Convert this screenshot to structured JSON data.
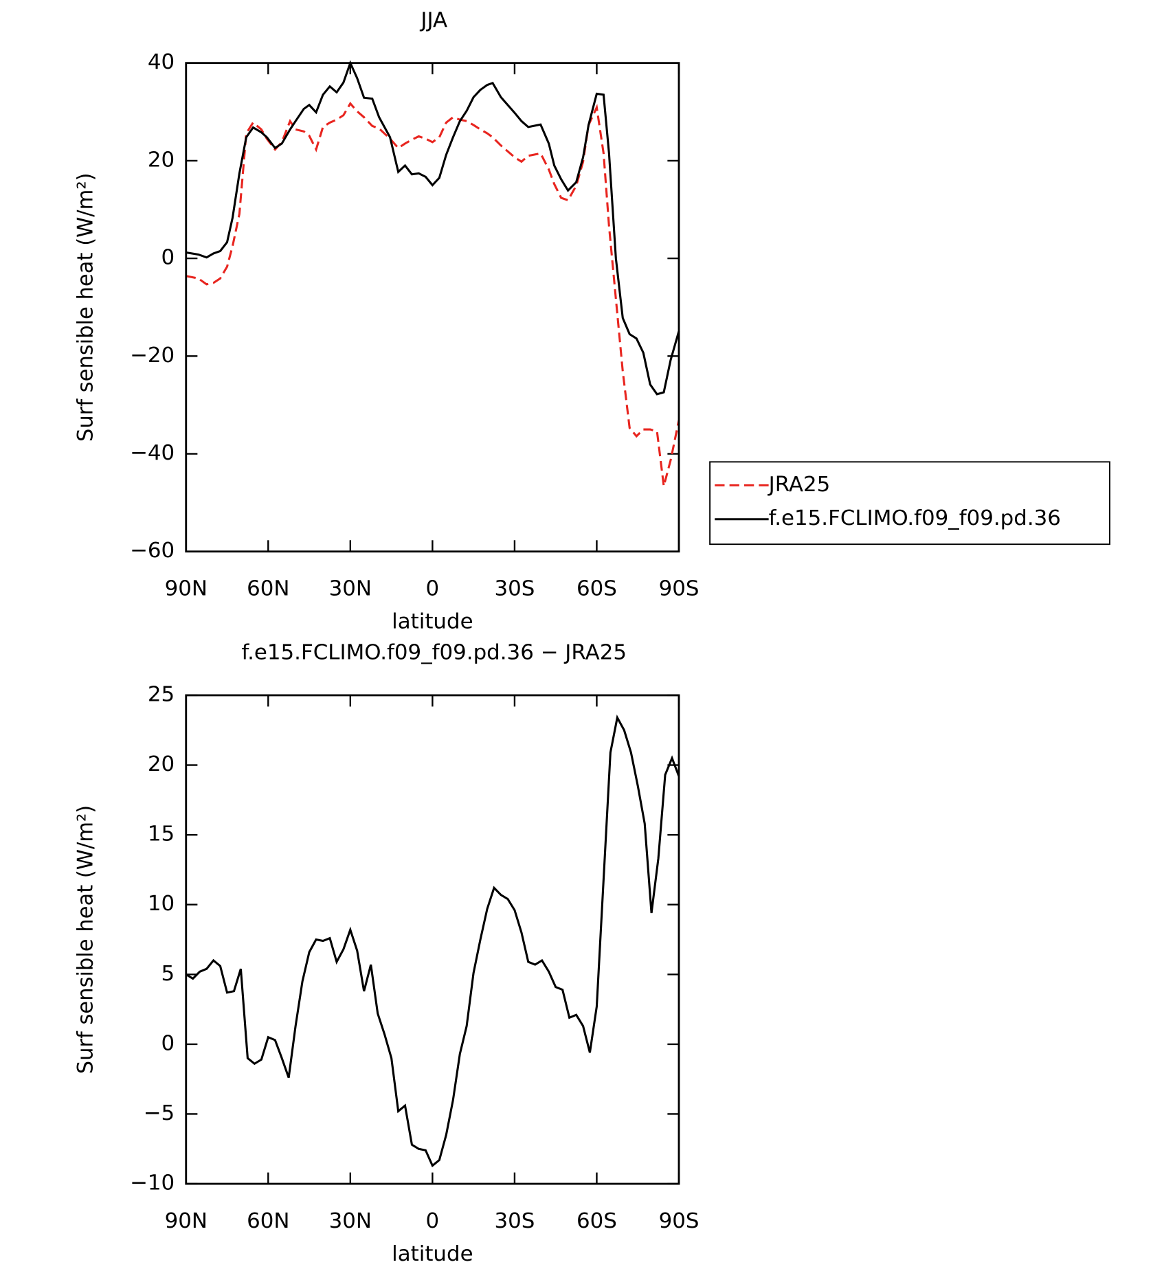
{
  "chart_data": [
    {
      "type": "line",
      "title": "JJA",
      "xlabel": "latitude",
      "ylabel": "Surf sensible heat (W/m²)",
      "x": [
        90,
        85.5,
        82.5,
        80,
        77.5,
        75,
        73,
        70.5,
        68,
        65.5,
        62.5,
        60.5,
        57.5,
        55,
        52,
        50,
        47,
        45,
        42.5,
        40,
        37.5,
        35,
        32.5,
        30,
        27.5,
        25,
        22,
        19.5,
        15.5,
        12.5,
        10,
        7.5,
        5,
        2.5,
        0,
        -2.5,
        -5,
        -7.5,
        -10,
        -12.5,
        -15,
        -17.5,
        -20,
        -22,
        -25,
        -30,
        -32.5,
        -35,
        -39.5,
        -42.5,
        -44.5,
        -47,
        -49.5,
        -52.5,
        -55,
        -57,
        -60,
        -62.5,
        -64.5,
        -67,
        -69.5,
        -72,
        -74.5,
        -77,
        -79.5,
        -82,
        -84.5,
        -87,
        -90
      ],
      "series": [
        {
          "name": "JRA25",
          "color": "#e8251f",
          "linestyle": "dashed",
          "values": [
            -3.6,
            -4.1,
            -5.3,
            -5,
            -4.1,
            -1.7,
            2.5,
            9.1,
            25.6,
            27.8,
            26.4,
            24.5,
            22.3,
            23.8,
            28.1,
            26.4,
            26,
            25.1,
            22.3,
            26.9,
            27.8,
            28.4,
            29.3,
            31.7,
            30.1,
            28.9,
            27.1,
            26.6,
            24.5,
            22.6,
            23.5,
            24.3,
            25,
            24.5,
            23.8,
            24.8,
            27.8,
            28.9,
            28.4,
            28.1,
            27.3,
            26.4,
            25.6,
            24.8,
            23.1,
            20.7,
            19.8,
            21,
            21.5,
            18.2,
            15.2,
            12.4,
            11.9,
            14.9,
            19.8,
            27.3,
            30.9,
            21.5,
            6.6,
            -8.3,
            -23.1,
            -34.7,
            -36.4,
            -35,
            -35,
            -35.4,
            -46.6,
            -41.3,
            -33.1
          ]
        },
        {
          "name": "f.e15.FCLIMO.f09_f09.pd.36",
          "color": "#000000",
          "linestyle": "solid",
          "values": [
            1.2,
            0.8,
            0.2,
            1,
            1.5,
            3.3,
            8.3,
            17.4,
            24.8,
            26.8,
            25.8,
            24.8,
            22.6,
            23.5,
            26.4,
            28.1,
            30.6,
            31.4,
            29.9,
            33.5,
            35.2,
            34,
            36,
            40,
            36.9,
            32.9,
            32.7,
            28.9,
            24.8,
            17.7,
            19,
            17.2,
            17.4,
            16.7,
            15,
            16.5,
            21.2,
            24.8,
            28.1,
            30.2,
            33,
            34.5,
            35.5,
            35.9,
            33,
            29.8,
            28.1,
            26.9,
            27.4,
            23.5,
            19,
            16.2,
            13.9,
            15.6,
            20.7,
            27.3,
            33.7,
            33.5,
            21.5,
            0,
            -12.2,
            -15.5,
            -16.4,
            -19.3,
            -25.8,
            -27.8,
            -27.4,
            -20.8,
            -14.9
          ]
        }
      ],
      "xlim": [
        90,
        -90
      ],
      "xticks": [
        {
          "value": 90,
          "label": "90N"
        },
        {
          "value": 60,
          "label": "60N"
        },
        {
          "value": 30,
          "label": "30N"
        },
        0,
        {
          "value": -30,
          "label": "30S"
        },
        {
          "value": -60,
          "label": "60S"
        },
        {
          "value": -90,
          "label": "90S"
        }
      ],
      "ylim": [
        -60,
        40
      ],
      "yticks": [
        {
          "value": -60,
          "label": "−60"
        },
        {
          "value": -40,
          "label": "−40"
        },
        {
          "value": -20,
          "label": "−20"
        },
        0,
        20,
        40
      ],
      "legend": "right"
    },
    {
      "type": "line",
      "title": "f.e15.FCLIMO.f09_f09.pd.36 − JRA25",
      "xlabel": "latitude",
      "ylabel": "Surf sensible heat (W/m²)",
      "x": [
        90,
        87.5,
        85,
        82.5,
        80,
        77.5,
        75,
        72.5,
        70,
        67.5,
        65,
        62.5,
        60,
        57.5,
        55,
        52.5,
        50,
        47.5,
        45,
        42.5,
        40,
        37.5,
        35,
        32.5,
        30,
        27.5,
        25,
        22.5,
        20,
        17.5,
        15,
        12.5,
        10,
        7.5,
        5,
        2.5,
        0,
        -2.5,
        -5,
        -7.5,
        -10,
        -12.5,
        -15,
        -17.5,
        -20,
        -22.5,
        -25,
        -27.5,
        -30,
        -32.5,
        -35,
        -37.5,
        -40,
        -42.5,
        -45,
        -47.5,
        -50,
        -52.5,
        -55,
        -57.5,
        -60,
        -62.5,
        -65,
        -67.5,
        -70,
        -72.5,
        -75,
        -77.5,
        -80,
        -82.5,
        -85,
        -87.5,
        -90
      ],
      "values": [
        5,
        4.7,
        5.2,
        5.4,
        6.0,
        5.6,
        3.7,
        3.8,
        5.4,
        -1,
        -1.4,
        -1.1,
        0.5,
        0.3,
        -1,
        -2.4,
        1.3,
        4.5,
        6.6,
        7.5,
        7.4,
        7.6,
        5.9,
        6.8,
        8.2,
        6.7,
        3.8,
        5.7,
        2.2,
        0.7,
        -1,
        -4.8,
        -4.4,
        -7.2,
        -7.5,
        -7.6,
        -8.7,
        -8.3,
        -6.5,
        -4,
        -0.7,
        1.3,
        5.1,
        7.5,
        9.7,
        11.2,
        10.7,
        10.4,
        9.6,
        8,
        5.9,
        5.7,
        6,
        5.2,
        4.1,
        3.9,
        1.9,
        2.1,
        1.3,
        -0.6,
        2.7,
        11.8,
        20.9,
        23.4,
        22.5,
        20.9,
        18.5,
        15.8,
        9.4,
        13.3,
        19.3,
        20.5,
        19.2
      ],
      "color": "#000000",
      "xlim": [
        90,
        -90
      ],
      "xticks": [
        {
          "value": 90,
          "label": "90N"
        },
        {
          "value": 60,
          "label": "60N"
        },
        {
          "value": 30,
          "label": "30N"
        },
        0,
        {
          "value": -30,
          "label": "30S"
        },
        {
          "value": -60,
          "label": "60S"
        },
        {
          "value": -90,
          "label": "90S"
        }
      ],
      "ylim": [
        -10,
        25
      ],
      "yticks": [
        {
          "value": -10,
          "label": "−10"
        },
        {
          "value": -5,
          "label": "−5"
        },
        0,
        5,
        10,
        15,
        20,
        25
      ]
    }
  ]
}
